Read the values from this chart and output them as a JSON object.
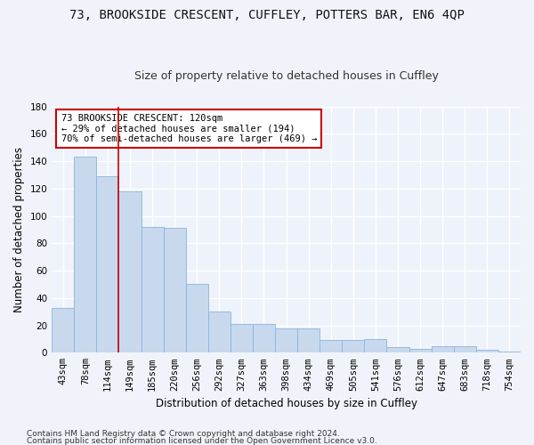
{
  "title1": "73, BROOKSIDE CRESCENT, CUFFLEY, POTTERS BAR, EN6 4QP",
  "title2": "Size of property relative to detached houses in Cuffley",
  "xlabel": "Distribution of detached houses by size in Cuffley",
  "ylabel": "Number of detached properties",
  "categories": [
    "43sqm",
    "78sqm",
    "114sqm",
    "149sqm",
    "185sqm",
    "220sqm",
    "256sqm",
    "292sqm",
    "327sqm",
    "363sqm",
    "398sqm",
    "434sqm",
    "469sqm",
    "505sqm",
    "541sqm",
    "576sqm",
    "612sqm",
    "647sqm",
    "683sqm",
    "718sqm",
    "754sqm"
  ],
  "values": [
    33,
    143,
    129,
    118,
    92,
    91,
    50,
    30,
    21,
    21,
    18,
    18,
    9,
    9,
    10,
    4,
    3,
    5,
    5,
    2,
    1
  ],
  "bar_color": "#c8d9ee",
  "bar_edge_color": "#8ab4d8",
  "marker_label1": "73 BROOKSIDE CRESCENT: 120sqm",
  "marker_label2": "← 29% of detached houses are smaller (194)",
  "marker_label3": "70% of semi-detached houses are larger (469) →",
  "annotation_box_color": "#ffffff",
  "annotation_box_edge": "#cc0000",
  "vline_color": "#cc0000",
  "ylim": [
    0,
    180
  ],
  "yticks": [
    0,
    20,
    40,
    60,
    80,
    100,
    120,
    140,
    160,
    180
  ],
  "footer1": "Contains HM Land Registry data © Crown copyright and database right 2024.",
  "footer2": "Contains public sector information licensed under the Open Government Licence v3.0.",
  "bg_color": "#eef2fa",
  "grid_color": "#ffffff",
  "title1_fontsize": 10,
  "title2_fontsize": 9,
  "xlabel_fontsize": 8.5,
  "ylabel_fontsize": 8.5,
  "tick_fontsize": 7.5,
  "annot_fontsize": 7.5,
  "footer_fontsize": 6.5
}
